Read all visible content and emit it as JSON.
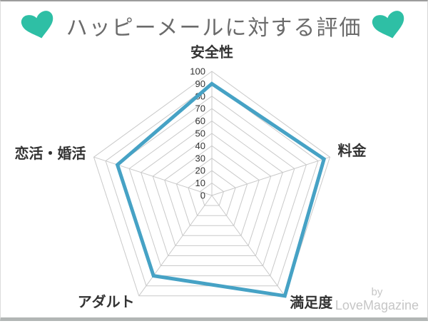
{
  "header": {
    "title": "ハッピーメールに対する評価",
    "heart_color": "#2ebfa5"
  },
  "credit": {
    "line1": "by",
    "line2": "LoveMagazine"
  },
  "chart_data": {
    "type": "radar",
    "title": "ハッピーメールに対する評価",
    "categories": [
      "安全性",
      "料金",
      "満足度",
      "アダルト",
      "恋活・婚活"
    ],
    "values": [
      90,
      95,
      100,
      80,
      80
    ],
    "axis_min": 0,
    "axis_max": 100,
    "tick_step": 10,
    "ticks": [
      0,
      10,
      20,
      30,
      40,
      50,
      60,
      70,
      80,
      90,
      100
    ],
    "line_color": "#46a2c5",
    "grid_color": "#c9c9c9",
    "tick_label_color": "#333333",
    "axis_label_color": "#333333",
    "grid_shape": "pentagon",
    "legend": "none",
    "fill": "none"
  }
}
